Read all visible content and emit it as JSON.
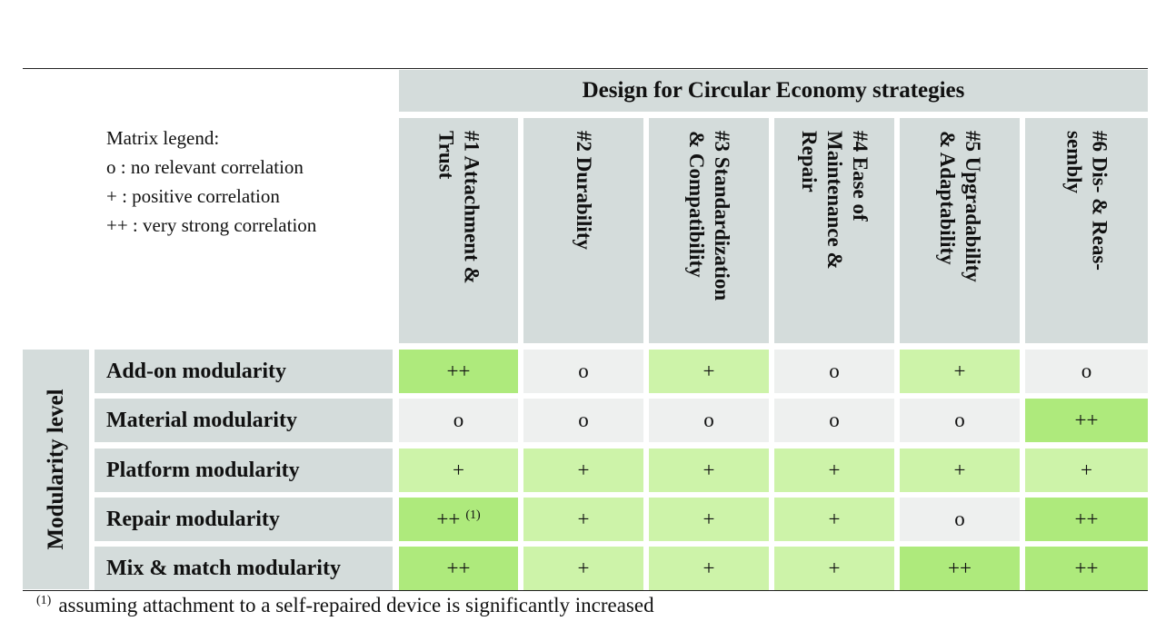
{
  "header": {
    "title": "Design for Circular Economy strategies"
  },
  "legend": {
    "title": "Matrix legend:",
    "items": [
      "o : no relevant correlation",
      "+ : positive correlation",
      "++ : very strong correlation"
    ]
  },
  "columns": [
    {
      "label": "#1 Attachment &\nTrust"
    },
    {
      "label": "#2 Durability"
    },
    {
      "label": "#3 Standardization\n& Compatibility"
    },
    {
      "label": "#4 Ease of\nMaintenance &\nRepair"
    },
    {
      "label": "#5 Upgradability\n& Adaptability"
    },
    {
      "label": "#6 Dis- & Reas-\nsembly"
    }
  ],
  "side_label": "Modularity level",
  "rows": [
    {
      "label": "Add-on modularity",
      "values": [
        "++",
        "o",
        "+",
        "o",
        "+",
        "o"
      ]
    },
    {
      "label": "Material modularity",
      "values": [
        "o",
        "o",
        "o",
        "o",
        "o",
        "++"
      ]
    },
    {
      "label": "Platform modularity",
      "values": [
        "+",
        "+",
        "+",
        "+",
        "+",
        "+"
      ]
    },
    {
      "label": "Repair modularity",
      "values": [
        "++",
        "+",
        "+",
        "+",
        "o",
        "++"
      ],
      "note_marker": "(1)"
    },
    {
      "label": "Mix & match modularity",
      "values": [
        "++",
        "+",
        "+",
        "+",
        "++",
        "++"
      ]
    }
  ],
  "footnote": {
    "marker": "(1)",
    "text": "assuming attachment to a self-repaired device is significantly increased"
  },
  "colors": {
    "header_bg": "#d4dcdb",
    "none": "#eef0ef",
    "positive": "#cdf3a9",
    "very_strong": "#aeea7c"
  }
}
